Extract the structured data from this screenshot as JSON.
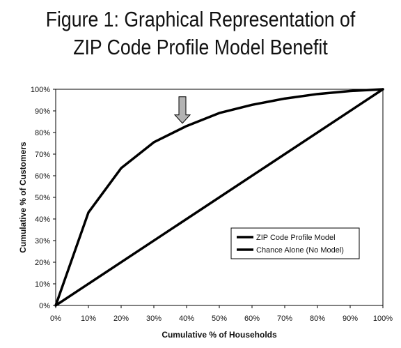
{
  "title": {
    "line1": "Figure 1: Graphical Representation of",
    "line2": "ZIP Code Profile Model Benefit"
  },
  "chart_data": {
    "type": "line",
    "xlabel": "Cumulative % of Households",
    "ylabel": "Cumulative % of Customers",
    "xlim": [
      0,
      100
    ],
    "ylim": [
      0,
      100
    ],
    "x_ticks": [
      "0%",
      "10%",
      "20%",
      "30%",
      "40%",
      "50%",
      "60%",
      "70%",
      "80%",
      "90%",
      "100%"
    ],
    "y_ticks": [
      "0%",
      "10%",
      "20%",
      "30%",
      "40%",
      "50%",
      "60%",
      "70%",
      "80%",
      "90%",
      "100%"
    ],
    "grid": false,
    "legend_position": "lower-right",
    "series": [
      {
        "name": "ZIP Code Profile Model",
        "x": [
          0,
          10,
          20,
          30,
          40,
          50,
          60,
          70,
          80,
          90,
          100
        ],
        "y": [
          0,
          43,
          63.5,
          75.5,
          83,
          89,
          92.8,
          95.7,
          97.8,
          99.2,
          100
        ],
        "color": "#000000"
      },
      {
        "name": "Chance Alone (No Model)",
        "x": [
          0,
          100
        ],
        "y": [
          0,
          100
        ],
        "color": "#000000"
      }
    ],
    "annotations": [
      {
        "type": "arrow",
        "x": 40,
        "y": 83,
        "direction": "down",
        "color": "#b3b3b3"
      }
    ]
  }
}
